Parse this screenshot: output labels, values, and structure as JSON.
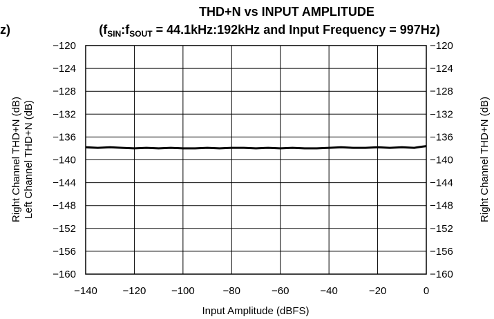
{
  "chart_data": {
    "type": "line",
    "title": "THD+N vs INPUT AMPLITUDE",
    "subtitle": {
      "prefix": "(f",
      "sub1": "SIN",
      "sep": ":f",
      "sub2": "SOUT",
      "suffix": " = 44.1kHz:192kHz and Input Frequency = 997Hz)"
    },
    "left_clipped_text": "z)",
    "xlabel": "Input Amplitude (dBFS)",
    "ylabel_left_1": "Right Channel THD+N (dB)",
    "ylabel_left_2": "Left Channel THD+N (dB)",
    "ylabel_right": "Right Channel THD+N (dB)",
    "xlim": [
      -140,
      0
    ],
    "ylim": [
      -160,
      -120
    ],
    "x_ticks": [
      -140,
      -120,
      -100,
      -80,
      -60,
      -40,
      -20,
      0
    ],
    "x_tick_labels": [
      "−140",
      "−120",
      "−100",
      "−80",
      "−60",
      "−40",
      "−20",
      "0"
    ],
    "y_ticks": [
      -120,
      -124,
      -128,
      -132,
      -136,
      -140,
      -144,
      -148,
      -152,
      -156,
      -160
    ],
    "y_tick_labels": [
      "−120",
      "−124",
      "−128",
      "−132",
      "−136",
      "−140",
      "−144",
      "−148",
      "−152",
      "−156",
      "−160"
    ],
    "grid": true,
    "series": [
      {
        "color": "#000000",
        "x": [
          -140,
          -135,
          -130,
          -125,
          -120,
          -115,
          -110,
          -105,
          -100,
          -95,
          -90,
          -85,
          -80,
          -75,
          -70,
          -65,
          -60,
          -55,
          -50,
          -45,
          -40,
          -35,
          -30,
          -25,
          -20,
          -15,
          -10,
          -5,
          -2,
          0
        ],
        "y": [
          -137.8,
          -137.9,
          -137.8,
          -137.9,
          -138.0,
          -137.9,
          -138.0,
          -137.9,
          -138.0,
          -138.0,
          -137.9,
          -138.0,
          -137.9,
          -137.9,
          -138.0,
          -137.9,
          -138.0,
          -137.9,
          -138.0,
          -138.0,
          -137.9,
          -137.8,
          -137.9,
          -137.9,
          -137.8,
          -137.9,
          -137.8,
          -137.9,
          -137.7,
          -137.6
        ]
      }
    ]
  }
}
